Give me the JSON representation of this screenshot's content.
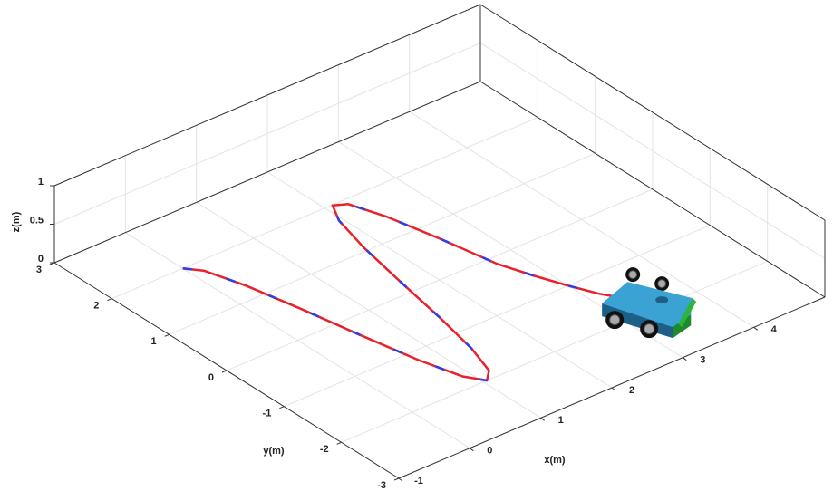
{
  "chart_data": {
    "type": "line3d",
    "xlabel": "x(m)",
    "ylabel": "y(m)",
    "zlabel": "z(m)",
    "xlim": [
      -1,
      5
    ],
    "ylim": [
      -3,
      3
    ],
    "zlim": [
      0,
      1
    ],
    "xticks": [
      -1,
      0,
      1,
      2,
      3,
      4
    ],
    "yticks": [
      -3,
      -2,
      -1,
      0,
      1,
      2,
      3
    ],
    "zticks": [
      0,
      0.5,
      1
    ],
    "grid": true,
    "series": [
      {
        "color": "#e8212b",
        "dashed": false,
        "x": [
          0,
          0.15,
          0.3,
          0.45,
          0.6,
          0.75,
          0.9,
          1.05,
          1.2,
          1.35,
          1.5,
          1.65,
          1.8,
          1.95,
          2.1,
          2.25,
          2.4,
          2.55,
          2.7,
          2.85,
          3.0,
          3.15,
          3.3
        ],
        "y": [
          2,
          1.81,
          1.27,
          0.49,
          -0.38,
          -1.18,
          -1.76,
          -2.0,
          -1.85,
          -1.36,
          -0.61,
          0.26,
          1.08,
          1.69,
          1.99,
          1.9,
          1.43,
          0.71,
          -0.15,
          -0.6,
          -1.0,
          -1.35,
          -1.6
        ]
      },
      {
        "color": "#2b3df0",
        "dashed": true,
        "x": [
          0,
          0.15,
          0.3,
          0.45,
          0.6,
          0.75,
          0.9,
          1.05,
          1.2,
          1.35,
          1.5,
          1.65,
          1.8,
          1.95,
          2.1,
          2.25,
          2.4,
          2.55,
          2.7,
          2.85,
          3.0,
          3.15,
          3.3
        ],
        "y": [
          2,
          1.81,
          1.27,
          0.49,
          -0.38,
          -1.18,
          -1.76,
          -2.0,
          -1.85,
          -1.36,
          -0.61,
          0.26,
          1.08,
          1.69,
          1.99,
          1.9,
          1.43,
          0.71,
          -0.15,
          -0.6,
          -1.0,
          -1.35,
          -1.6
        ]
      }
    ]
  }
}
